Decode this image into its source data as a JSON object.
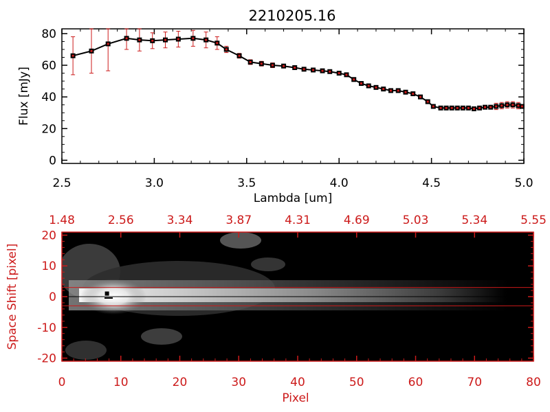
{
  "title": "2210205.16",
  "colors": {
    "axis": "#000000",
    "accent": "#cc1a1a",
    "image_bg": "#000000"
  },
  "chart_data": [
    {
      "type": "line",
      "title": "2210205.16",
      "xlabel": "Lambda [um]",
      "ylabel": "Flux [mJy]",
      "xlim": [
        2.5,
        5.0
      ],
      "ylim": [
        -2,
        83
      ],
      "xticks": [
        "2.5",
        "3.0",
        "3.5",
        "4.0",
        "4.5",
        "5.0"
      ],
      "yticks": [
        "0",
        "20",
        "40",
        "60",
        "80"
      ],
      "grid": false,
      "series": [
        {
          "x": [
            2.56,
            2.66,
            2.75,
            2.85,
            2.92,
            2.99,
            3.06,
            3.13,
            3.21,
            3.28,
            3.34,
            3.39,
            3.46,
            3.52,
            3.58,
            3.64,
            3.7,
            3.76,
            3.81,
            3.86,
            3.91,
            3.95,
            4.0,
            4.04,
            4.08,
            4.12,
            4.16,
            4.2,
            4.24,
            4.28,
            4.32,
            4.36,
            4.4,
            4.44,
            4.48,
            4.51,
            4.55,
            4.58,
            4.61,
            4.64,
            4.67,
            4.7,
            4.73,
            4.76,
            4.79,
            4.82,
            4.85,
            4.88,
            4.91,
            4.94,
            4.97,
            4.99
          ],
          "y": [
            66,
            69,
            73.5,
            77,
            76,
            75.5,
            76,
            76.5,
            77,
            76,
            74,
            70,
            66,
            62,
            61,
            60,
            59.5,
            58.5,
            57.5,
            57,
            56.5,
            56,
            55,
            54,
            51,
            48.5,
            47,
            46,
            45,
            44,
            44,
            43,
            42,
            40,
            37,
            34,
            33,
            33,
            33,
            33,
            33,
            33,
            32.5,
            33,
            33.5,
            33.5,
            34,
            34.5,
            35,
            35,
            34.5,
            34
          ],
          "err": [
            12,
            14,
            17,
            7,
            7,
            5,
            5,
            5,
            5,
            5,
            4,
            2,
            1.5,
            1.5,
            1.5,
            1.5,
            1,
            1,
            1,
            1,
            1,
            1,
            1,
            1,
            1,
            1,
            1,
            1,
            1,
            1,
            1,
            1,
            1,
            1,
            1,
            1,
            1,
            1,
            1,
            1,
            1,
            1,
            1,
            1,
            1,
            1,
            2,
            2,
            2,
            2,
            2,
            1
          ]
        }
      ]
    },
    {
      "type": "heatmap",
      "xlabel": "Pixel",
      "ylabel": "Space Shift [pixel]",
      "xlim": [
        0,
        80
      ],
      "ylim": [
        -21,
        21
      ],
      "xticks": [
        "0",
        "10",
        "20",
        "30",
        "40",
        "50",
        "60",
        "70",
        "80"
      ],
      "yticks": [
        "-20",
        "-10",
        "0",
        "10",
        "20"
      ],
      "top_ticks": [
        "1.48",
        "2.56",
        "3.34",
        "3.87",
        "4.31",
        "4.69",
        "5.03",
        "5.34",
        "5.55"
      ],
      "extraction_band": [
        -3,
        3
      ],
      "peak": [
        8,
        1
      ],
      "grid": false
    }
  ]
}
